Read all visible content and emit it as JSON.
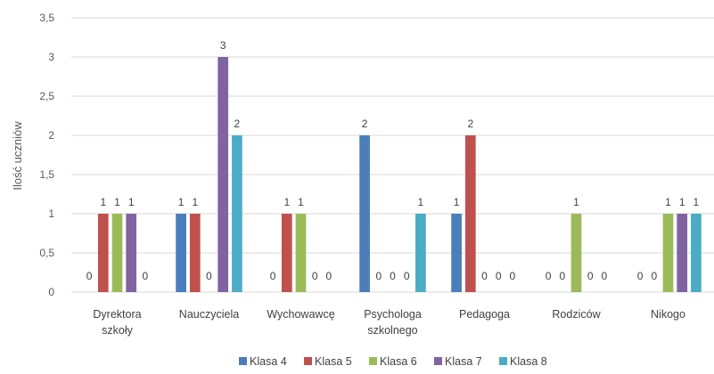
{
  "chart_data": {
    "type": "bar",
    "ylabel": "Ilość uczniów",
    "xlabel": "",
    "ylim": [
      0,
      3.5
    ],
    "yticks": [
      "0",
      "0,5",
      "1",
      "1,5",
      "2",
      "2,5",
      "3",
      "3,5"
    ],
    "grid": true,
    "legend_position": "bottom",
    "categories": [
      [
        "Dyrektora",
        "szkoły"
      ],
      [
        "Nauczyciela"
      ],
      [
        "Wychowawcę"
      ],
      [
        "Psychologa",
        "szkolnego"
      ],
      [
        "Pedagoga"
      ],
      [
        "Rodziców"
      ],
      [
        "Nikogo"
      ]
    ],
    "series": [
      {
        "name": "Klasa 4",
        "color": "#4a7ebb",
        "values": [
          0,
          1,
          0,
          2,
          1,
          0,
          0
        ]
      },
      {
        "name": "Klasa 5",
        "color": "#c0504d",
        "values": [
          1,
          1,
          1,
          0,
          2,
          0,
          0
        ]
      },
      {
        "name": "Klasa 6",
        "color": "#9bbb59",
        "values": [
          1,
          0,
          1,
          0,
          0,
          1,
          1
        ]
      },
      {
        "name": "Klasa 7",
        "color": "#8064a2",
        "values": [
          1,
          3,
          0,
          0,
          0,
          0,
          1
        ]
      },
      {
        "name": "Klasa 8",
        "color": "#4bacc6",
        "values": [
          0,
          2,
          0,
          1,
          0,
          0,
          1
        ]
      }
    ]
  }
}
